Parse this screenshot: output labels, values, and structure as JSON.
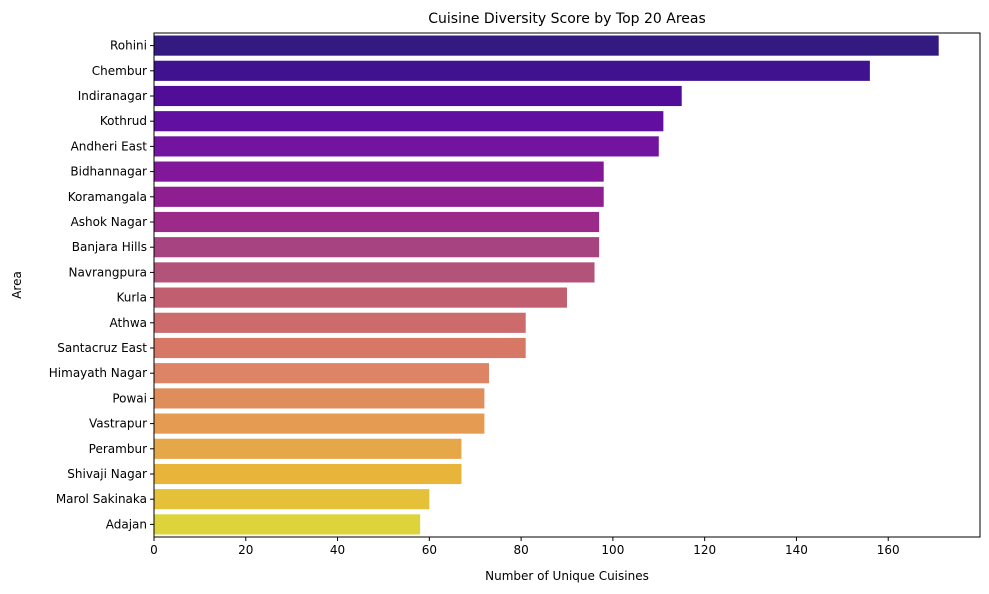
{
  "chart_data": {
    "type": "bar",
    "orientation": "horizontal",
    "title": "Cuisine Diversity Score by Top 20 Areas",
    "xlabel": "Number of Unique Cuisines",
    "ylabel": "Area",
    "xlim": [
      0,
      180
    ],
    "xticks": [
      "0",
      "20",
      "40",
      "60",
      "80",
      "100",
      "120",
      "140",
      "160"
    ],
    "grid": false,
    "colormap": "plasma",
    "categories": [
      "Rohini",
      "Chembur",
      "Indiranagar",
      "Kothrud",
      "Andheri East",
      "Bidhannagar",
      "Koramangala",
      "Ashok Nagar",
      "Banjara Hills",
      "Navrangpura",
      "Kurla",
      "Athwa",
      "Santacruz East",
      "Himayath Nagar",
      "Powai",
      "Vastrapur",
      "Perambur",
      "Shivaji Nagar",
      "Marol Sakinaka",
      "Adajan"
    ],
    "values": [
      171,
      156,
      115,
      111,
      110,
      98,
      98,
      97,
      97,
      96,
      90,
      81,
      81,
      73,
      72,
      72,
      67,
      67,
      60,
      58
    ],
    "colors": [
      "#321a80",
      "#41128f",
      "#520d98",
      "#610fa0",
      "#72149f",
      "#82179a",
      "#8f1e91",
      "#9b2a88",
      "#a74380",
      "#b4537a",
      "#c15e70",
      "#cc6a6c",
      "#d77866",
      "#dc8465",
      "#df8d5b",
      "#e59b52",
      "#e6a749",
      "#e8b53a",
      "#e4c138",
      "#ddd33a"
    ]
  }
}
